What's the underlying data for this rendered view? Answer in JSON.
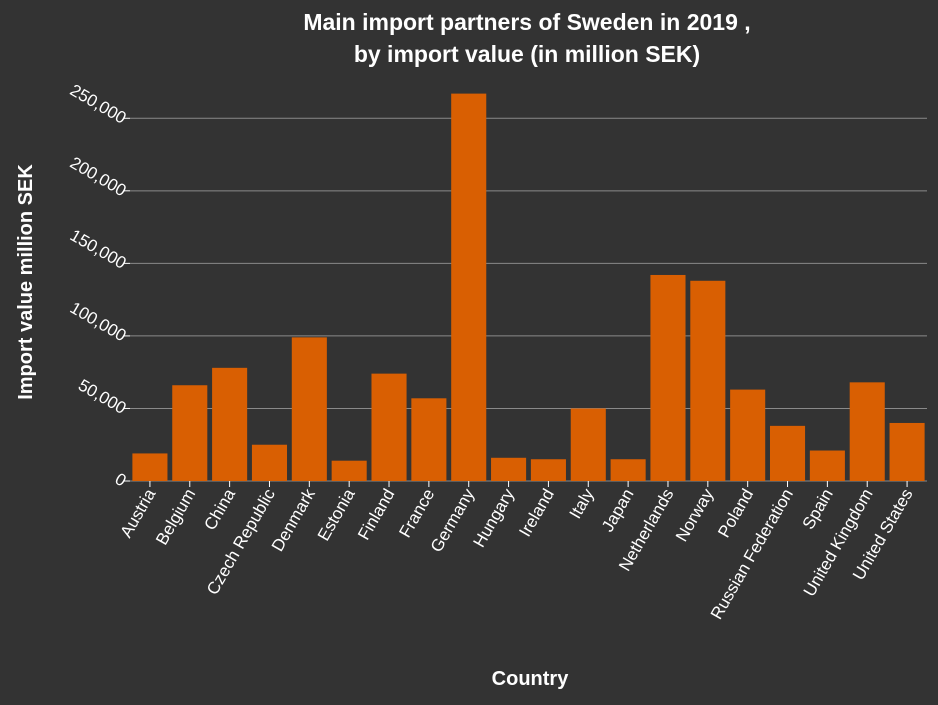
{
  "chart_data": {
    "type": "bar",
    "title_lines": [
      "Main import partners of Sweden in 2019 ,",
      "by import value (in million SEK)"
    ],
    "xlabel": "Country",
    "ylabel": "Import value million SEK",
    "categories": [
      "Austria",
      "Belgium",
      "China",
      "Czech Republic",
      "Denmark",
      "Estonia",
      "Finland",
      "France",
      "Germany",
      "Hungary",
      "Ireland",
      "Italy",
      "Japan",
      "Netherlands",
      "Norway",
      "Poland",
      "Russian Federation",
      "Spain",
      "United Kingdom",
      "United States"
    ],
    "values": [
      19000,
      66000,
      78000,
      25000,
      99000,
      14000,
      74000,
      57000,
      267000,
      16000,
      15000,
      50000,
      15000,
      142000,
      138000,
      63000,
      38000,
      21000,
      68000,
      40000
    ],
    "yticks": [
      0,
      50000,
      100000,
      150000,
      200000,
      250000
    ],
    "ytick_labels": [
      "0",
      "50,000",
      "100,000",
      "150,000",
      "200,000",
      "250,000"
    ],
    "ylim": [
      0,
      275000
    ],
    "grid": true,
    "colors": {
      "background": "#333333",
      "bar": "#d95f02",
      "grid": "#8a8a8a",
      "text": "#ffffff"
    }
  }
}
